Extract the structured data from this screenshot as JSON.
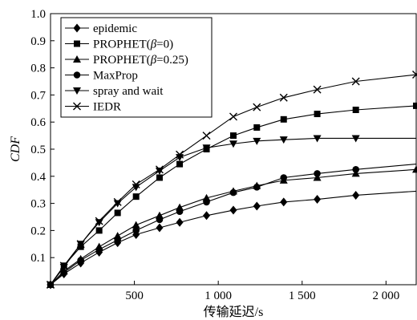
{
  "chart_data": {
    "type": "line",
    "xlabel": "传输延迟/s",
    "ylabel": "CDF",
    "xlim": [
      0,
      2180
    ],
    "ylim": [
      0,
      1.0
    ],
    "xticks": [
      500,
      1000,
      1500,
      2000
    ],
    "xtick_labels": [
      "500",
      "1 000",
      "1 500",
      "2 000"
    ],
    "yticks": [
      0.1,
      0.2,
      0.3,
      0.4,
      0.5,
      0.6,
      0.7,
      0.8,
      0.9,
      1.0
    ],
    "ytick_labels": [
      "0.1",
      "0.2",
      "0.3",
      "0.4",
      "0.5",
      "0.6",
      "0.7",
      "0.8",
      "0.9",
      "1.0"
    ],
    "legend_position": "top-left",
    "grid": false,
    "series": [
      {
        "name": "epidemic",
        "name_parts": [
          "epidemic"
        ],
        "marker": "diamond",
        "x": [
          0,
          80,
          180,
          290,
          400,
          510,
          650,
          770,
          930,
          1090,
          1230,
          1390,
          1590,
          1820,
          2180
        ],
        "y": [
          0.0,
          0.04,
          0.08,
          0.12,
          0.155,
          0.185,
          0.21,
          0.23,
          0.255,
          0.275,
          0.29,
          0.305,
          0.315,
          0.33,
          0.345
        ],
        "marker_x": [
          0,
          80,
          180,
          290,
          400,
          510,
          650,
          770,
          930,
          1090,
          1230,
          1390,
          1590,
          1820
        ],
        "marker_y": [
          0.0,
          0.04,
          0.08,
          0.12,
          0.155,
          0.185,
          0.21,
          0.23,
          0.255,
          0.275,
          0.29,
          0.305,
          0.315,
          0.33
        ]
      },
      {
        "name": "PROPHET(β=0)",
        "name_parts": [
          "PROPHET(",
          "β",
          "=0)"
        ],
        "marker": "square",
        "x": [
          0,
          80,
          180,
          290,
          400,
          510,
          650,
          770,
          930,
          1090,
          1230,
          1390,
          1590,
          1820,
          2180
        ],
        "y": [
          0.0,
          0.07,
          0.14,
          0.2,
          0.265,
          0.325,
          0.395,
          0.445,
          0.5,
          0.55,
          0.58,
          0.61,
          0.63,
          0.645,
          0.66
        ],
        "marker_x": [
          0,
          80,
          180,
          290,
          400,
          510,
          650,
          770,
          930,
          1090,
          1230,
          1390,
          1590,
          1820,
          2180
        ],
        "marker_y": [
          0.0,
          0.07,
          0.14,
          0.2,
          0.265,
          0.325,
          0.395,
          0.445,
          0.5,
          0.55,
          0.58,
          0.61,
          0.63,
          0.645,
          0.66
        ]
      },
      {
        "name": "PROPHET(β=0.25)",
        "name_parts": [
          "PROPHET(",
          "β",
          "=0.25)"
        ],
        "marker": "triangle-up",
        "x": [
          0,
          80,
          180,
          290,
          400,
          510,
          650,
          770,
          930,
          1090,
          1230,
          1390,
          1590,
          1820,
          2180
        ],
        "y": [
          0.0,
          0.05,
          0.095,
          0.14,
          0.18,
          0.22,
          0.255,
          0.285,
          0.32,
          0.345,
          0.365,
          0.385,
          0.395,
          0.41,
          0.425
        ],
        "marker_x": [
          0,
          80,
          180,
          290,
          400,
          510,
          650,
          770,
          930,
          1090,
          1230,
          1390,
          1590,
          1820,
          2180
        ],
        "marker_y": [
          0.0,
          0.05,
          0.095,
          0.14,
          0.18,
          0.22,
          0.255,
          0.285,
          0.32,
          0.345,
          0.365,
          0.385,
          0.395,
          0.41,
          0.425
        ]
      },
      {
        "name": "MaxProp",
        "name_parts": [
          "MaxProp"
        ],
        "marker": "circle",
        "x": [
          0,
          80,
          180,
          290,
          400,
          510,
          650,
          770,
          930,
          1090,
          1230,
          1390,
          1590,
          1820,
          2180
        ],
        "y": [
          0.0,
          0.045,
          0.09,
          0.13,
          0.165,
          0.2,
          0.24,
          0.27,
          0.305,
          0.34,
          0.36,
          0.395,
          0.41,
          0.425,
          0.445
        ],
        "marker_x": [
          0,
          80,
          180,
          290,
          400,
          510,
          650,
          770,
          930,
          1090,
          1230,
          1390,
          1590,
          1820
        ],
        "marker_y": [
          0.0,
          0.045,
          0.09,
          0.13,
          0.165,
          0.2,
          0.24,
          0.27,
          0.305,
          0.34,
          0.36,
          0.395,
          0.41,
          0.425
        ]
      },
      {
        "name": "spray and wait",
        "name_parts": [
          "spray and wait"
        ],
        "marker": "triangle-down",
        "x": [
          0,
          80,
          180,
          290,
          400,
          510,
          650,
          770,
          930,
          1090,
          1230,
          1390,
          1590,
          1820,
          2180
        ],
        "y": [
          0.0,
          0.065,
          0.15,
          0.23,
          0.3,
          0.36,
          0.42,
          0.47,
          0.505,
          0.52,
          0.53,
          0.535,
          0.54,
          0.54,
          0.54
        ],
        "marker_x": [
          0,
          80,
          180,
          290,
          400,
          510,
          650,
          770,
          930,
          1090,
          1230,
          1390,
          1590,
          1820
        ],
        "marker_y": [
          0.0,
          0.065,
          0.15,
          0.23,
          0.3,
          0.36,
          0.42,
          0.47,
          0.505,
          0.52,
          0.53,
          0.535,
          0.54,
          0.54
        ]
      },
      {
        "name": "IEDR",
        "name_parts": [
          "IEDR"
        ],
        "marker": "x",
        "x": [
          0,
          80,
          180,
          290,
          400,
          510,
          650,
          770,
          930,
          1090,
          1230,
          1390,
          1590,
          1820,
          2180
        ],
        "y": [
          0.0,
          0.07,
          0.15,
          0.235,
          0.305,
          0.37,
          0.425,
          0.48,
          0.55,
          0.62,
          0.655,
          0.69,
          0.72,
          0.75,
          0.775
        ],
        "marker_x": [
          0,
          80,
          180,
          290,
          400,
          510,
          650,
          770,
          930,
          1090,
          1230,
          1390,
          1590,
          1820,
          2180
        ],
        "marker_y": [
          0.0,
          0.07,
          0.15,
          0.235,
          0.305,
          0.37,
          0.425,
          0.48,
          0.55,
          0.62,
          0.655,
          0.69,
          0.72,
          0.75,
          0.775
        ]
      }
    ]
  }
}
